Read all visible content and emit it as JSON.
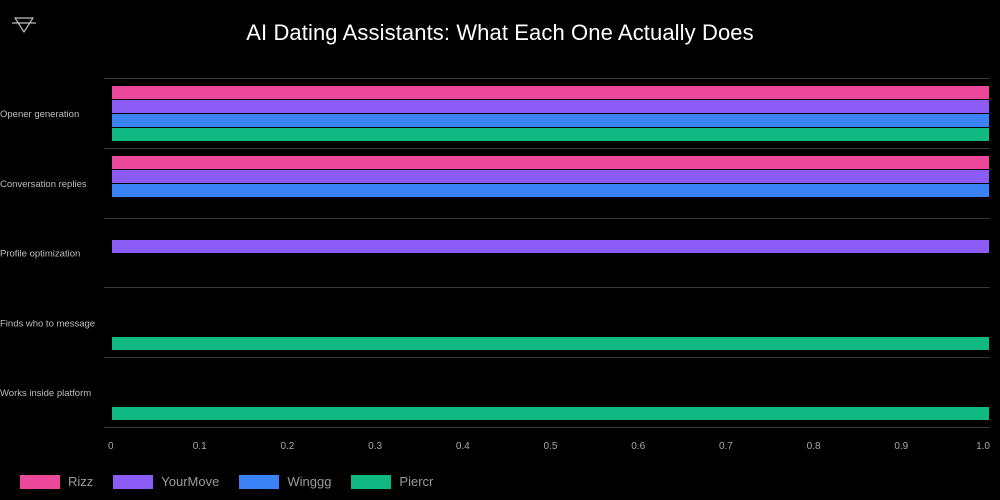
{
  "header": {
    "title": "AI Dating Assistants: What Each One Actually Does",
    "logo_icon": "triangle-logo-icon"
  },
  "chart_data": {
    "type": "bar",
    "orientation": "horizontal",
    "title": "AI Dating Assistants: What Each One Actually Does",
    "xlabel": "",
    "ylabel": "",
    "xlim": [
      0,
      1.0
    ],
    "x_ticks": [
      "0",
      "0.1",
      "0.2",
      "0.3",
      "0.4",
      "0.5",
      "0.6",
      "0.7",
      "0.8",
      "0.9",
      "1.0"
    ],
    "grid": "horizontal separators between categories",
    "legend_position": "bottom-left",
    "categories": [
      "Opener generation",
      "Conversation replies",
      "Profile optimization",
      "Finds who to message",
      "Works inside platform"
    ],
    "series": [
      {
        "name": "Rizz",
        "color": "#ec4899",
        "values": [
          1,
          1,
          0,
          0,
          0
        ]
      },
      {
        "name": "YourMove",
        "color": "#8b5cf6",
        "values": [
          1,
          1,
          1,
          0,
          0
        ]
      },
      {
        "name": "Winggg",
        "color": "#3b82f6",
        "values": [
          1,
          1,
          0,
          0,
          0
        ]
      },
      {
        "name": "Piercr",
        "color": "#10b981",
        "values": [
          1,
          0,
          0,
          1,
          1
        ]
      }
    ]
  }
}
